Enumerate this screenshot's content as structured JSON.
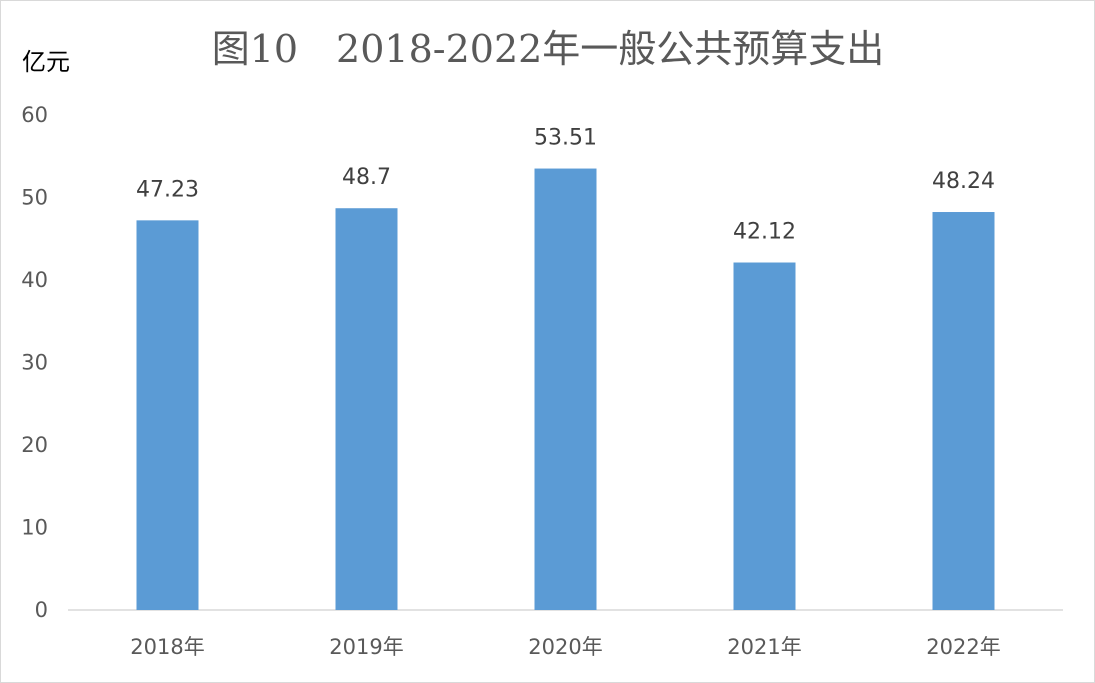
{
  "chart_data": {
    "type": "bar",
    "title": "图10　2018-2022年一般公共预算支出",
    "ylabel": "亿元",
    "xlabel": "",
    "categories": [
      "2018年",
      "2019年",
      "2020年",
      "2021年",
      "2022年"
    ],
    "values": [
      47.23,
      48.7,
      53.51,
      42.12,
      48.24
    ],
    "data_labels": [
      "47.23",
      "48.7",
      "53.51",
      "42.12",
      "48.24"
    ],
    "ylim": [
      0,
      60
    ],
    "yticks": [
      "0",
      "10",
      "20",
      "30",
      "40",
      "50",
      "60"
    ],
    "grid": false,
    "legend": "none",
    "bar_color": "#5b9bd5"
  }
}
